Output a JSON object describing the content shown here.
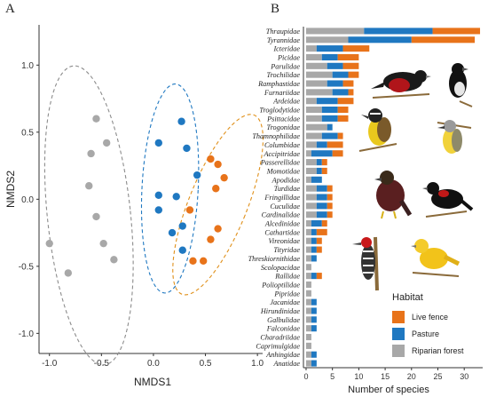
{
  "panels": {
    "a_letter": "A",
    "b_letter": "B"
  },
  "colors": {
    "live_fence": "#E8731A",
    "pasture": "#1F78C1",
    "riparian_forest": "#A8A8A8",
    "ellipse_grey": "#8C8C8C",
    "ellipse_blue": "#1F78C1",
    "ellipse_orange": "#E0901A"
  },
  "icons": [
    "bird-red-breasted-blackbird",
    "bird-seedeater",
    "bird-kiskadee",
    "bird-tropical-kingbird",
    "bird-guan-chachalaca",
    "bird-red-shouldered-blackbird",
    "bird-woodpecker",
    "bird-yellow-warbler"
  ],
  "chart_data": [
    {
      "type": "scatter",
      "xlabel": "NMDS1",
      "ylabel": "NMDS2",
      "xlim": [
        -1.1,
        1.05
      ],
      "ylim": [
        -1.15,
        1.3
      ],
      "xticks": [
        -1.0,
        -0.5,
        0.0,
        0.5,
        1.0
      ],
      "xtick_labels": [
        "-1.0",
        "-0.5",
        "0.0",
        "0.5",
        "1.0"
      ],
      "yticks": [
        -1.0,
        -0.5,
        0.0,
        0.5,
        1.0
      ],
      "ytick_labels": [
        "-1.0",
        "-0.5",
        "0.0",
        "0.5",
        "1.0"
      ],
      "grid": false,
      "series": [
        {
          "key": "riparian_forest",
          "x": [
            -0.55,
            -0.45,
            -0.6,
            -0.62,
            -0.55,
            -0.48,
            -0.38,
            -1.0,
            -0.82
          ],
          "y": [
            0.6,
            0.42,
            0.34,
            0.1,
            -0.13,
            -0.33,
            -0.45,
            -0.33,
            -0.55
          ]
        },
        {
          "key": "pasture",
          "x": [
            0.27,
            0.05,
            0.32,
            0.42,
            0.05,
            0.22,
            0.05,
            0.28,
            0.18,
            0.28
          ],
          "y": [
            0.58,
            0.42,
            0.38,
            0.18,
            0.03,
            0.02,
            -0.08,
            -0.2,
            -0.25,
            -0.38
          ]
        },
        {
          "key": "live_fence",
          "x": [
            0.55,
            0.62,
            0.68,
            0.6,
            0.35,
            0.62,
            0.55,
            0.38,
            0.48
          ],
          "y": [
            0.3,
            0.26,
            0.16,
            0.08,
            -0.08,
            -0.22,
            -0.3,
            -0.46,
            -0.46
          ]
        }
      ],
      "ellipses": [
        {
          "key": "ellipse_grey",
          "cx": -0.62,
          "cy": -0.12,
          "rx": 0.4,
          "ry": 1.12,
          "angle_deg": -6
        },
        {
          "key": "ellipse_blue",
          "cx": 0.16,
          "cy": 0.08,
          "rx": 0.27,
          "ry": 0.78,
          "angle_deg": 3
        },
        {
          "key": "ellipse_orange",
          "cx": 0.62,
          "cy": -0.04,
          "rx": 0.28,
          "ry": 0.72,
          "angle_deg": 22
        }
      ]
    },
    {
      "type": "bar",
      "orientation": "horizontal",
      "stacked": true,
      "xlabel": "Number of species",
      "xlim": [
        -0.5,
        33.5
      ],
      "xticks": [
        0,
        5,
        10,
        15,
        20,
        25,
        30
      ],
      "xtick_labels": [
        "0",
        "5",
        "10",
        "15",
        "20",
        "25",
        "30"
      ],
      "categories": [
        "Thraupidae",
        "Tyrannidae",
        "Icteridae",
        "Picidae",
        "Parulidae",
        "Trochilidae",
        "Ramphastidae",
        "Furnariidae",
        "Ardeidae",
        "Troglodytidae",
        "Psittacidae",
        "Trogonidae",
        "Thamnophilidae",
        "Columbidae",
        "Accipitridae",
        "Passerellidae",
        "Momotidae",
        "Apodidae",
        "Turdidae",
        "Fringillidae",
        "Cuculidae",
        "Cardinalidae",
        "Alcedinidae",
        "Cathartidae",
        "Vireonidae",
        "Tityridae",
        "Threskiornithidae",
        "Scolopacidae",
        "Rallidae",
        "Polioptilidae",
        "Pipridae",
        "Jacanidae",
        "Hirundinidae",
        "Galbulidae",
        "Falconidae",
        "Charadriidae",
        "Caprimulgidae",
        "Anhingidae",
        "Anatidae"
      ],
      "series": [
        {
          "key": "riparian_forest",
          "values": [
            11,
            8,
            2,
            3,
            4,
            5,
            4,
            5,
            2,
            3,
            3,
            4,
            3,
            2,
            1,
            2,
            2,
            1,
            2,
            2,
            2,
            2,
            1,
            1,
            1,
            1,
            1,
            1,
            1,
            1,
            1,
            1,
            1,
            1,
            1,
            1,
            1,
            1,
            1
          ]
        },
        {
          "key": "pasture",
          "values": [
            13,
            12,
            5,
            3,
            3,
            3,
            3,
            3,
            4,
            3,
            3,
            1,
            3,
            2,
            4,
            1,
            1,
            2,
            2,
            2,
            2,
            2,
            2,
            1,
            1,
            1,
            1,
            0,
            1,
            0,
            0,
            1,
            1,
            1,
            1,
            0,
            0,
            1,
            1
          ]
        },
        {
          "key": "live_fence",
          "values": [
            9,
            12,
            5,
            4,
            3,
            2,
            2,
            1,
            3,
            2,
            2,
            0,
            1,
            3,
            2,
            1,
            1,
            0,
            1,
            1,
            1,
            1,
            1,
            2,
            1,
            1,
            0,
            0,
            1,
            0,
            0,
            0,
            0,
            0,
            0,
            0,
            0,
            0,
            0
          ]
        }
      ],
      "legend": {
        "title": "Habitat",
        "placement": "bottom-right",
        "entries": [
          "Live fence",
          "Pasture",
          "Riparian forest"
        ]
      }
    }
  ]
}
